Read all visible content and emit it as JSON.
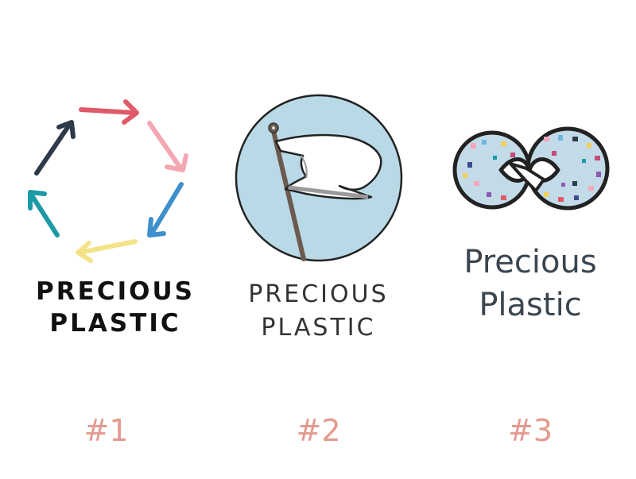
{
  "logos": [
    {
      "line1": "PRECIOUS",
      "line2": "PLASTIC",
      "number": "#1"
    },
    {
      "line1": "PRECIOUS",
      "line2": "PLASTIC",
      "number": "#2"
    },
    {
      "line1": "Precious",
      "line2": "Plastic",
      "number": "#3"
    }
  ],
  "colors": {
    "arrow_red": "#e05a6a",
    "arrow_pink": "#f4a7b2",
    "arrow_blue": "#3e8fcb",
    "arrow_yellow": "#f5e38a",
    "arrow_teal": "#1b9aa5",
    "arrow_navy": "#2d3a4a",
    "circle_fill": "#b9d9e6",
    "number_color": "#e39a8e"
  }
}
